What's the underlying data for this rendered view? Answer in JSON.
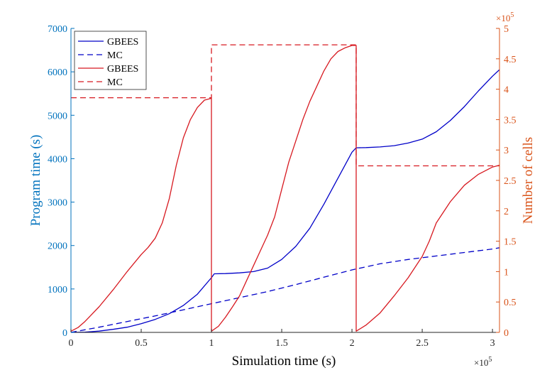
{
  "chart_data": {
    "type": "line",
    "xlabel": "Simulation time (s)",
    "ylabel_left": "Program time (s)",
    "ylabel_right": "Number of cells",
    "x_exponent_label": "×10",
    "x_exponent_power": "5",
    "y_right_exponent_label": "×10",
    "y_right_exponent_power": "5",
    "xlim": [
      0,
      3.05
    ],
    "ylim_left": [
      0,
      7000
    ],
    "ylim_right": [
      0,
      5
    ],
    "x_ticks": [
      "0",
      "0.5",
      "1",
      "1.5",
      "2",
      "2.5",
      "3"
    ],
    "y_left_ticks": [
      "0",
      "1000",
      "2000",
      "3000",
      "4000",
      "5000",
      "6000",
      "7000"
    ],
    "y_right_ticks": [
      "0",
      "0.5",
      "1",
      "1.5",
      "2",
      "2.5",
      "3",
      "3.5",
      "4",
      "4.5",
      "5"
    ],
    "grid": false,
    "legend_position": "top-left",
    "colors": {
      "left_axis": "#0072bd",
      "right_axis": "#d95319",
      "blue_series": "#0000c8",
      "red_series": "#d71920"
    },
    "series": [
      {
        "name": "GBEES",
        "axis": "left",
        "style": "solid",
        "color": "#0000c8",
        "x": [
          0,
          0.1,
          0.2,
          0.3,
          0.4,
          0.5,
          0.6,
          0.7,
          0.8,
          0.9,
          1.0,
          1.02,
          1.1,
          1.2,
          1.3,
          1.4,
          1.5,
          1.6,
          1.7,
          1.8,
          1.9,
          2.0,
          2.03,
          2.1,
          2.2,
          2.3,
          2.4,
          2.5,
          2.6,
          2.7,
          2.8,
          2.9,
          3.0,
          3.05
        ],
        "values": [
          0,
          5,
          30,
          70,
          120,
          200,
          300,
          430,
          620,
          880,
          1260,
          1350,
          1355,
          1370,
          1400,
          1480,
          1680,
          1980,
          2400,
          2950,
          3550,
          4150,
          4250,
          4255,
          4270,
          4300,
          4360,
          4450,
          4620,
          4880,
          5200,
          5560,
          5900,
          6050
        ]
      },
      {
        "name": "MC",
        "axis": "left",
        "style": "dashed",
        "color": "#0000c8",
        "x": [
          0,
          0.2,
          0.4,
          0.6,
          0.8,
          1.0,
          1.2,
          1.4,
          1.6,
          1.8,
          2.0,
          2.2,
          2.4,
          2.6,
          2.8,
          3.0,
          3.05
        ],
        "values": [
          0,
          120,
          250,
          380,
          520,
          660,
          800,
          940,
          1100,
          1270,
          1440,
          1580,
          1680,
          1760,
          1840,
          1920,
          1950
        ]
      },
      {
        "name": "GBEES",
        "axis": "right",
        "style": "solid",
        "color": "#d71920",
        "x": [
          0,
          0.05,
          0.1,
          0.2,
          0.3,
          0.4,
          0.5,
          0.55,
          0.6,
          0.65,
          0.7,
          0.75,
          0.8,
          0.85,
          0.9,
          0.95,
          1.0,
          1.0,
          1.05,
          1.1,
          1.15,
          1.2,
          1.25,
          1.3,
          1.35,
          1.4,
          1.45,
          1.5,
          1.55,
          1.6,
          1.65,
          1.7,
          1.75,
          1.8,
          1.85,
          1.9,
          1.95,
          2.0,
          2.03,
          2.03,
          2.1,
          2.2,
          2.3,
          2.4,
          2.5,
          2.55,
          2.6,
          2.7,
          2.8,
          2.9,
          3.0,
          3.05
        ],
        "values": [
          0.02,
          0.08,
          0.18,
          0.42,
          0.7,
          1.0,
          1.28,
          1.4,
          1.55,
          1.8,
          2.2,
          2.75,
          3.2,
          3.5,
          3.7,
          3.82,
          3.85,
          0.02,
          0.1,
          0.25,
          0.42,
          0.6,
          0.85,
          1.1,
          1.35,
          1.6,
          1.9,
          2.35,
          2.8,
          3.15,
          3.5,
          3.8,
          4.05,
          4.3,
          4.5,
          4.62,
          4.68,
          4.72,
          4.72,
          0.02,
          0.12,
          0.32,
          0.6,
          0.9,
          1.25,
          1.5,
          1.8,
          2.15,
          2.42,
          2.6,
          2.72,
          2.75
        ]
      },
      {
        "name": "MC",
        "axis": "right",
        "style": "dashed",
        "color": "#d71920",
        "x": [
          0,
          1.0,
          1.0,
          1.0,
          2.03,
          2.03,
          2.05,
          3.05
        ],
        "values": [
          3.86,
          3.86,
          4.73,
          4.73,
          4.73,
          2.74,
          2.74,
          2.74
        ]
      }
    ]
  }
}
